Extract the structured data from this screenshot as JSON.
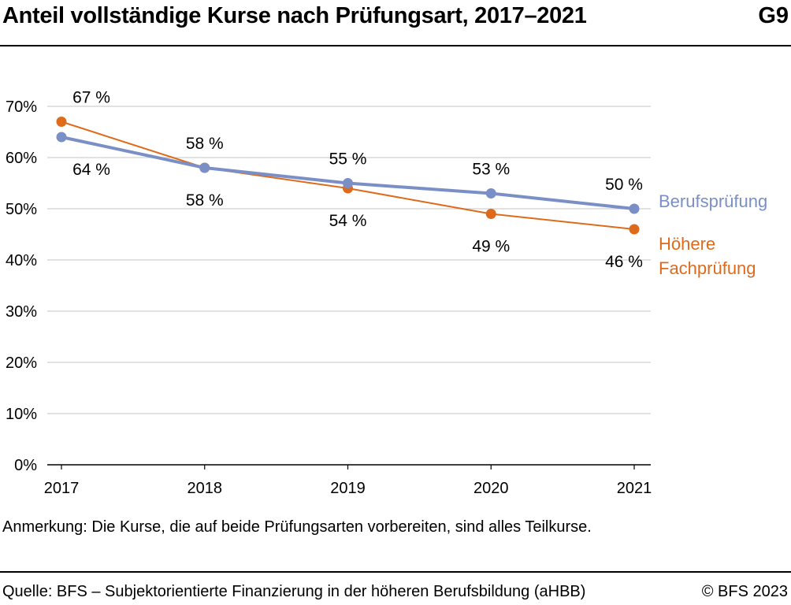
{
  "header": {
    "title": "Anteil vollständige Kurse nach Prüfungsart, 2017–2021",
    "code": "G9"
  },
  "footer": {
    "note": "Anmerkung: Die Kurse, die auf beide Prüfungsarten vorbereiten, sind alles Teilkurse.",
    "source": "Quelle: BFS – Subjektorientierte Finanzierung in der höheren Berufsbildung (aHBB)",
    "copyright": "© BFS 2023"
  },
  "chart_data": {
    "type": "line",
    "title": "Anteil vollständige Kurse nach Prüfungsart, 2017–2021",
    "xlabel": "",
    "ylabel": "",
    "categories": [
      "2017",
      "2018",
      "2019",
      "2020",
      "2021"
    ],
    "ylim": [
      0,
      70
    ],
    "yticks": [
      0,
      10,
      20,
      30,
      40,
      50,
      60,
      70
    ],
    "ytick_labels": [
      "0%",
      "10%",
      "20%",
      "30%",
      "40%",
      "50%",
      "60%",
      "70%"
    ],
    "grid": true,
    "legend_placement": "right, next to line ends",
    "series": [
      {
        "name": "Berufsprüfung",
        "color": "#7b8fc7",
        "values": [
          64,
          58,
          55,
          53,
          50
        ],
        "labels": [
          "64 %",
          "58 %",
          "55 %",
          "53 %",
          "50 %"
        ]
      },
      {
        "name": "Höhere Fachprüfung",
        "name_lines": [
          "Höhere",
          "Fachprüfung"
        ],
        "color": "#de6b1c",
        "values": [
          67,
          58,
          54,
          49,
          46
        ],
        "labels": [
          "67 %",
          "58 %",
          "54 %",
          "49 %",
          "46 %"
        ]
      }
    ]
  }
}
